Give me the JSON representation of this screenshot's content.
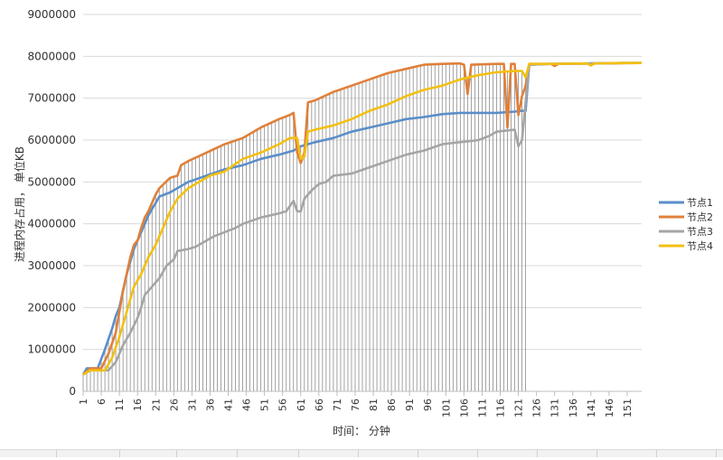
{
  "chart_data": {
    "type": "line",
    "title": "",
    "ylabel": "进程内存占用， 单位KB",
    "xlabel": "时间： 分钟",
    "ylim": [
      0,
      9000000
    ],
    "yticks": [
      0,
      1000000,
      2000000,
      3000000,
      4000000,
      5000000,
      6000000,
      7000000,
      8000000,
      9000000
    ],
    "xlim": [
      1,
      155
    ],
    "xticks": [
      1,
      6,
      11,
      16,
      21,
      26,
      31,
      36,
      41,
      46,
      51,
      56,
      61,
      66,
      71,
      76,
      81,
      86,
      91,
      96,
      101,
      106,
      111,
      116,
      121,
      126,
      131,
      136,
      141,
      146,
      151
    ],
    "grid": true,
    "legend_position": "right",
    "vertical_lines_until": 123,
    "series": [
      {
        "name": "节点1",
        "color": "#5b8ec9",
        "points": [
          [
            1,
            400000
          ],
          [
            2,
            550000
          ],
          [
            5,
            550000
          ],
          [
            7,
            1000000
          ],
          [
            9,
            1500000
          ],
          [
            10,
            1800000
          ],
          [
            11,
            2000000
          ],
          [
            12,
            2400000
          ],
          [
            13,
            2800000
          ],
          [
            14,
            3100000
          ],
          [
            15,
            3400000
          ],
          [
            16,
            3600000
          ],
          [
            17,
            3800000
          ],
          [
            18,
            4000000
          ],
          [
            19,
            4200000
          ],
          [
            20,
            4350000
          ],
          [
            21,
            4500000
          ],
          [
            22,
            4650000
          ],
          [
            25,
            4750000
          ],
          [
            30,
            5000000
          ],
          [
            35,
            5150000
          ],
          [
            40,
            5300000
          ],
          [
            45,
            5400000
          ],
          [
            50,
            5550000
          ],
          [
            55,
            5650000
          ],
          [
            59,
            5750000
          ],
          [
            60,
            5800000
          ],
          [
            61,
            5850000
          ],
          [
            65,
            5950000
          ],
          [
            70,
            6050000
          ],
          [
            75,
            6200000
          ],
          [
            80,
            6300000
          ],
          [
            85,
            6400000
          ],
          [
            90,
            6500000
          ],
          [
            95,
            6550000
          ],
          [
            100,
            6620000
          ],
          [
            105,
            6650000
          ],
          [
            110,
            6650000
          ],
          [
            115,
            6650000
          ],
          [
            120,
            6680000
          ],
          [
            122,
            6700000
          ],
          [
            123,
            6700000
          ],
          [
            124,
            7800000
          ],
          [
            130,
            7820000
          ],
          [
            140,
            7830000
          ],
          [
            150,
            7840000
          ],
          [
            155,
            7840000
          ]
        ]
      },
      {
        "name": "节点2",
        "color": "#e0803a",
        "points": [
          [
            1,
            400000
          ],
          [
            3,
            550000
          ],
          [
            6,
            550000
          ],
          [
            8,
            900000
          ],
          [
            10,
            1400000
          ],
          [
            11,
            1900000
          ],
          [
            12,
            2400000
          ],
          [
            13,
            2800000
          ],
          [
            14,
            3200000
          ],
          [
            15,
            3500000
          ],
          [
            16,
            3600000
          ],
          [
            17,
            3900000
          ],
          [
            18,
            4150000
          ],
          [
            19,
            4300000
          ],
          [
            20,
            4500000
          ],
          [
            21,
            4700000
          ],
          [
            22,
            4850000
          ],
          [
            25,
            5100000
          ],
          [
            27,
            5150000
          ],
          [
            28,
            5400000
          ],
          [
            30,
            5500000
          ],
          [
            35,
            5700000
          ],
          [
            40,
            5900000
          ],
          [
            45,
            6050000
          ],
          [
            50,
            6300000
          ],
          [
            55,
            6500000
          ],
          [
            58,
            6600000
          ],
          [
            59,
            6650000
          ],
          [
            60,
            5700000
          ],
          [
            61,
            5450000
          ],
          [
            62,
            5700000
          ],
          [
            63,
            6900000
          ],
          [
            65,
            6950000
          ],
          [
            70,
            7150000
          ],
          [
            75,
            7300000
          ],
          [
            80,
            7450000
          ],
          [
            85,
            7600000
          ],
          [
            90,
            7700000
          ],
          [
            95,
            7800000
          ],
          [
            100,
            7820000
          ],
          [
            105,
            7830000
          ],
          [
            106,
            7800000
          ],
          [
            107,
            7100000
          ],
          [
            108,
            7800000
          ],
          [
            115,
            7820000
          ],
          [
            117,
            7820000
          ],
          [
            118,
            6300000
          ],
          [
            119,
            7820000
          ],
          [
            120,
            7820000
          ],
          [
            121,
            6600000
          ],
          [
            122,
            7050000
          ],
          [
            123,
            7300000
          ],
          [
            124,
            7820000
          ],
          [
            130,
            7820000
          ],
          [
            131,
            7770000
          ],
          [
            132,
            7820000
          ],
          [
            155,
            7840000
          ]
        ]
      },
      {
        "name": "节点3",
        "color": "#a5a5a5",
        "points": [
          [
            1,
            400000
          ],
          [
            3,
            500000
          ],
          [
            8,
            500000
          ],
          [
            10,
            700000
          ],
          [
            12,
            1100000
          ],
          [
            14,
            1400000
          ],
          [
            16,
            1750000
          ],
          [
            17,
            2000000
          ],
          [
            18,
            2300000
          ],
          [
            20,
            2500000
          ],
          [
            22,
            2700000
          ],
          [
            24,
            3000000
          ],
          [
            26,
            3150000
          ],
          [
            27,
            3350000
          ],
          [
            30,
            3400000
          ],
          [
            32,
            3450000
          ],
          [
            35,
            3600000
          ],
          [
            37,
            3700000
          ],
          [
            40,
            3800000
          ],
          [
            43,
            3900000
          ],
          [
            45,
            4000000
          ],
          [
            50,
            4150000
          ],
          [
            55,
            4250000
          ],
          [
            57,
            4300000
          ],
          [
            59,
            4550000
          ],
          [
            60,
            4300000
          ],
          [
            61,
            4300000
          ],
          [
            62,
            4600000
          ],
          [
            64,
            4800000
          ],
          [
            66,
            4950000
          ],
          [
            68,
            5000000
          ],
          [
            70,
            5150000
          ],
          [
            75,
            5200000
          ],
          [
            80,
            5350000
          ],
          [
            85,
            5500000
          ],
          [
            90,
            5650000
          ],
          [
            95,
            5750000
          ],
          [
            100,
            5900000
          ],
          [
            105,
            5950000
          ],
          [
            110,
            6000000
          ],
          [
            113,
            6100000
          ],
          [
            115,
            6200000
          ],
          [
            120,
            6250000
          ],
          [
            121,
            5850000
          ],
          [
            122,
            6000000
          ],
          [
            123,
            6900000
          ],
          [
            124,
            7800000
          ],
          [
            130,
            7820000
          ],
          [
            140,
            7830000
          ],
          [
            150,
            7840000
          ],
          [
            155,
            7840000
          ]
        ]
      },
      {
        "name": "节点4",
        "color": "#f2c013",
        "points": [
          [
            1,
            400000
          ],
          [
            3,
            500000
          ],
          [
            7,
            500000
          ],
          [
            9,
            800000
          ],
          [
            11,
            1300000
          ],
          [
            13,
            1900000
          ],
          [
            15,
            2500000
          ],
          [
            17,
            2800000
          ],
          [
            19,
            3200000
          ],
          [
            21,
            3500000
          ],
          [
            23,
            3900000
          ],
          [
            25,
            4300000
          ],
          [
            27,
            4600000
          ],
          [
            30,
            4850000
          ],
          [
            33,
            5000000
          ],
          [
            36,
            5150000
          ],
          [
            40,
            5250000
          ],
          [
            45,
            5550000
          ],
          [
            50,
            5700000
          ],
          [
            55,
            5900000
          ],
          [
            58,
            6050000
          ],
          [
            60,
            6050000
          ],
          [
            61,
            5550000
          ],
          [
            62,
            5600000
          ],
          [
            63,
            6200000
          ],
          [
            65,
            6250000
          ],
          [
            70,
            6350000
          ],
          [
            75,
            6500000
          ],
          [
            80,
            6700000
          ],
          [
            85,
            6850000
          ],
          [
            90,
            7050000
          ],
          [
            95,
            7200000
          ],
          [
            100,
            7300000
          ],
          [
            105,
            7450000
          ],
          [
            110,
            7550000
          ],
          [
            115,
            7620000
          ],
          [
            120,
            7650000
          ],
          [
            122,
            7650000
          ],
          [
            123,
            7500000
          ],
          [
            124,
            7820000
          ],
          [
            130,
            7820000
          ],
          [
            140,
            7830000
          ],
          [
            141,
            7780000
          ],
          [
            142,
            7830000
          ],
          [
            150,
            7840000
          ],
          [
            155,
            7840000
          ]
        ]
      }
    ]
  }
}
